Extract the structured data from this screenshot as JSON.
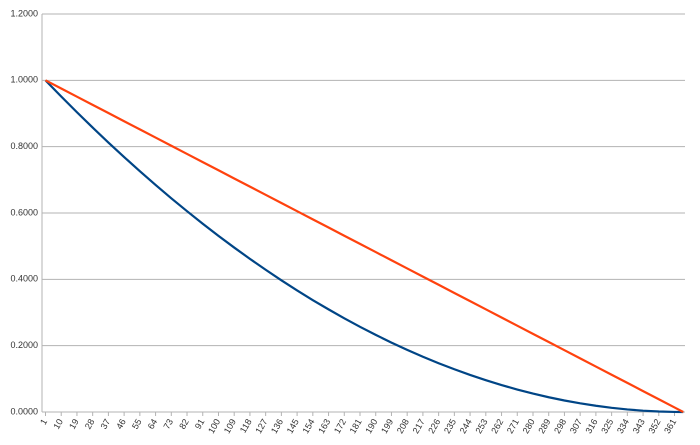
{
  "chart_data": {
    "type": "line",
    "x": [
      1,
      10,
      19,
      28,
      37,
      46,
      55,
      64,
      73,
      82,
      91,
      100,
      109,
      118,
      127,
      136,
      145,
      154,
      163,
      172,
      181,
      190,
      199,
      208,
      217,
      226,
      235,
      244,
      253,
      262,
      271,
      280,
      289,
      298,
      307,
      316,
      325,
      334,
      343,
      352,
      361,
      366
    ],
    "series": [
      {
        "color": "#004586",
        "values": [
          1.0,
          0.9512,
          0.9038,
          0.8575,
          0.8125,
          0.7686,
          0.7261,
          0.6846,
          0.6443,
          0.6054,
          0.5676,
          0.5311,
          0.4958,
          0.4617,
          0.4288,
          0.397,
          0.3666,
          0.3373,
          0.3094,
          0.2825,
          0.2568,
          0.2325,
          0.2093,
          0.1874,
          0.1666,
          0.1471,
          0.1288,
          0.1117,
          0.0959,
          0.0812,
          0.0678,
          0.0555,
          0.0445,
          0.0347,
          0.0261,
          0.0188,
          0.0126,
          0.0077,
          0.004,
          0.0015,
          0.0002,
          0
        ]
      },
      {
        "color": "#ff420e",
        "values": [
          1.0,
          0.9753,
          0.9507,
          0.926,
          0.9014,
          0.8767,
          0.8521,
          0.8274,
          0.8027,
          0.7781,
          0.7534,
          0.7288,
          0.7041,
          0.6795,
          0.6548,
          0.6301,
          0.6055,
          0.5808,
          0.5562,
          0.5315,
          0.5068,
          0.4822,
          0.4575,
          0.4329,
          0.4082,
          0.3836,
          0.3589,
          0.3342,
          0.3096,
          0.2849,
          0.2603,
          0.2356,
          0.211,
          0.1863,
          0.1616,
          0.137,
          0.1123,
          0.0877,
          0.063,
          0.0384,
          0.0137,
          0
        ]
      }
    ],
    "xlim": [
      -1,
      367
    ],
    "xticks": [
      1,
      10,
      19,
      28,
      37,
      46,
      55,
      64,
      73,
      82,
      91,
      100,
      109,
      118,
      127,
      136,
      145,
      154,
      163,
      172,
      181,
      190,
      199,
      208,
      217,
      226,
      235,
      244,
      253,
      262,
      271,
      280,
      289,
      298,
      307,
      316,
      325,
      334,
      343,
      352,
      361
    ],
    "ylim": [
      0,
      1.2
    ],
    "yticks": [
      {
        "value": 0,
        "label": "0.0000"
      },
      {
        "value": 0.2,
        "label": "0.2000"
      },
      {
        "value": 0.4,
        "label": "0.4000"
      },
      {
        "value": 0.6,
        "label": "0.6000"
      },
      {
        "value": 0.8,
        "label": "0.8000"
      },
      {
        "value": 1.0,
        "label": "1.0000"
      },
      {
        "value": 1.2,
        "label": "1.2000"
      }
    ],
    "grid": true
  }
}
